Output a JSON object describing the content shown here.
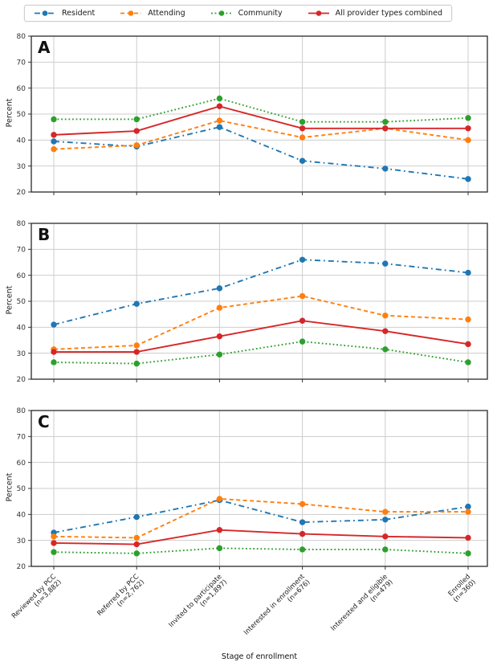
{
  "series_styles": [
    {
      "name": "Resident",
      "color": "#1f77b4",
      "linestyle": "dashdot",
      "marker": "circle"
    },
    {
      "name": "Attending",
      "color": "#ff7f0e",
      "linestyle": "dashed",
      "marker": "circle"
    },
    {
      "name": "Community",
      "color": "#2ca02c",
      "linestyle": "dotted",
      "marker": "circle"
    },
    {
      "name": "All provider types combined",
      "color": "#d62728",
      "linestyle": "solid",
      "marker": "circle"
    }
  ],
  "chart_data": {
    "type": "line",
    "xlabel": "Stage of enrollment",
    "ylabel": "Percent",
    "ylim": [
      20,
      80
    ],
    "yticks": [
      20,
      30,
      40,
      50,
      60,
      70,
      80
    ],
    "grid": true,
    "legend_position": "top-left-horizontal",
    "categories": [
      {
        "label": "Reviewed by PCC",
        "n": "(n=3,882)"
      },
      {
        "label": "Referred by PCC",
        "n": "(n=2,762)"
      },
      {
        "label": "Invited to participate",
        "n": "(n=1,897)"
      },
      {
        "label": "Interested in enrollment",
        "n": "(n=676)"
      },
      {
        "label": "Interested and eligible",
        "n": "(n=479)"
      },
      {
        "label": "Enrolled",
        "n": "(n=360)"
      }
    ],
    "panels": [
      {
        "panel_label": "A",
        "series": [
          {
            "name": "Resident",
            "values": [
              39.5,
              37.5,
              45,
              32,
              29,
              25
            ]
          },
          {
            "name": "Attending",
            "values": [
              36.5,
              38,
              47.5,
              41,
              44.5,
              40
            ]
          },
          {
            "name": "Community",
            "values": [
              48,
              48,
              56,
              47,
              47,
              48.5
            ]
          },
          {
            "name": "All provider types combined",
            "values": [
              42,
              43.5,
              53,
              44.5,
              44.5,
              44.5
            ]
          }
        ]
      },
      {
        "panel_label": "B",
        "series": [
          {
            "name": "Resident",
            "values": [
              41,
              49,
              55,
              66,
              64.5,
              61
            ]
          },
          {
            "name": "Attending",
            "values": [
              31.5,
              33,
              47.5,
              52,
              44.5,
              43
            ]
          },
          {
            "name": "Community",
            "values": [
              26.5,
              26,
              29.5,
              34.5,
              31.5,
              26.5
            ]
          },
          {
            "name": "All provider types combined",
            "values": [
              30.5,
              30.5,
              36.5,
              42.5,
              38.5,
              33.5
            ]
          }
        ]
      },
      {
        "panel_label": "C",
        "series": [
          {
            "name": "Resident",
            "values": [
              33,
              39,
              45.5,
              37,
              38,
              43
            ]
          },
          {
            "name": "Attending",
            "values": [
              31.5,
              31,
              46,
              44,
              41,
              41
            ]
          },
          {
            "name": "Community",
            "values": [
              25.5,
              25,
              27,
              26.5,
              26.5,
              25
            ]
          },
          {
            "name": "All provider types combined",
            "values": [
              29,
              28.5,
              34,
              32.5,
              31.5,
              31
            ]
          }
        ]
      }
    ]
  }
}
